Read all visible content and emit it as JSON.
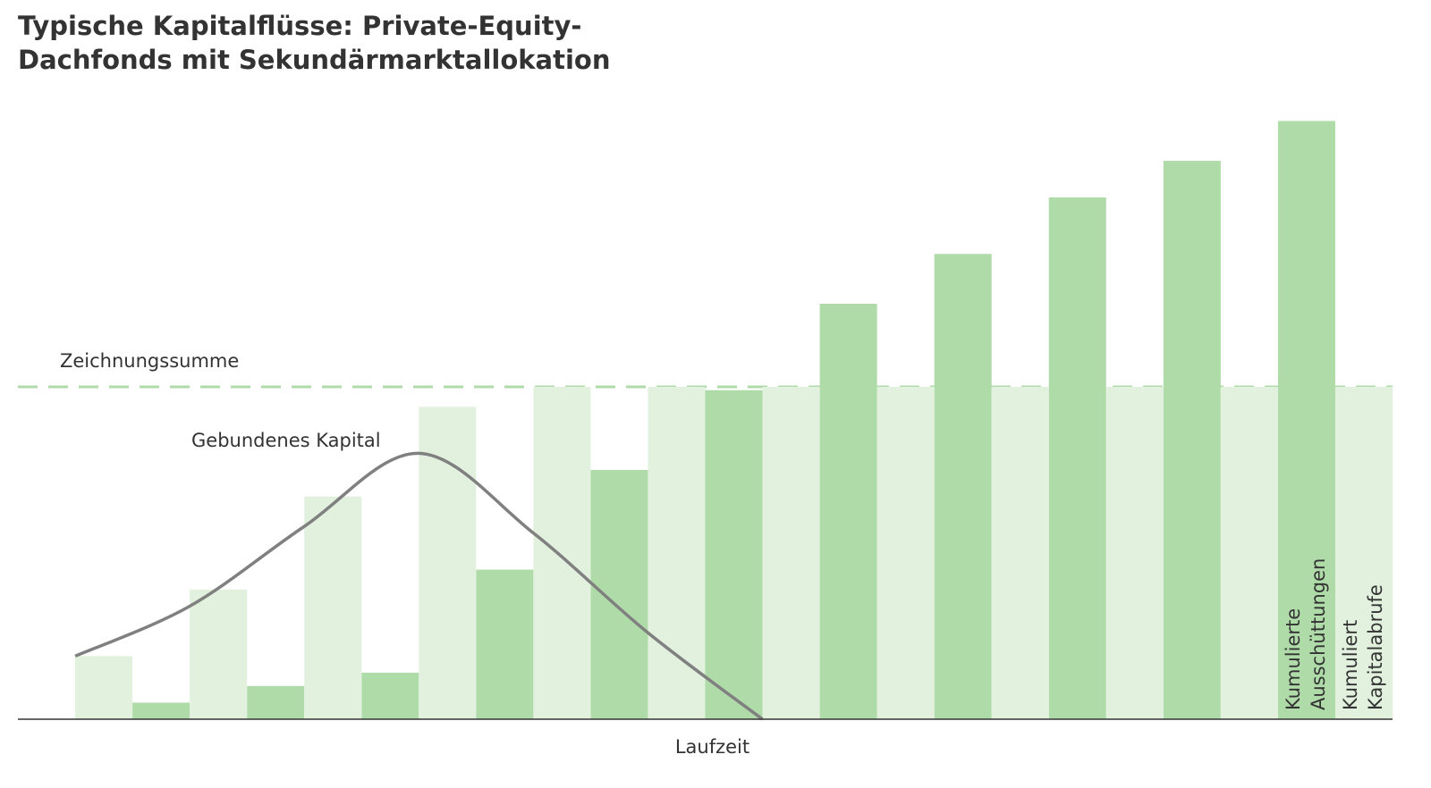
{
  "chart_data": {
    "type": "bar",
    "title": [
      "Typische Kapitalflüsse: Private-Equity-",
      "Dachfonds mit Sekundärmarktallokation"
    ],
    "x_label": "Laufzeit",
    "categories": [
      null,
      null,
      null,
      null,
      null,
      null,
      null,
      null,
      null,
      null,
      null,
      null
    ],
    "series": [
      {
        "name": "Kumulierte Ausschüttungen",
        "color": "#afdba8",
        "values": [
          0,
          5,
          10,
          14,
          45,
          75,
          99,
          125,
          140,
          157,
          168,
          180
        ]
      },
      {
        "name": "Kumuliert Kapitalabrufe",
        "color": "#e1f1de",
        "values": [
          19,
          39,
          67,
          94,
          100,
          100,
          100,
          100,
          100,
          100,
          100,
          100
        ]
      },
      {
        "name": "Gebundenes Kapital",
        "type": "line",
        "color": "#808080",
        "values": [
          19,
          34,
          58,
          80,
          56,
          26,
          0,
          null,
          null,
          null,
          null,
          null
        ]
      }
    ],
    "reference_line": {
      "label": "Zeichnungssumme",
      "value": 100,
      "color": "#afdba8"
    },
    "ylim": [
      0,
      200
    ]
  }
}
